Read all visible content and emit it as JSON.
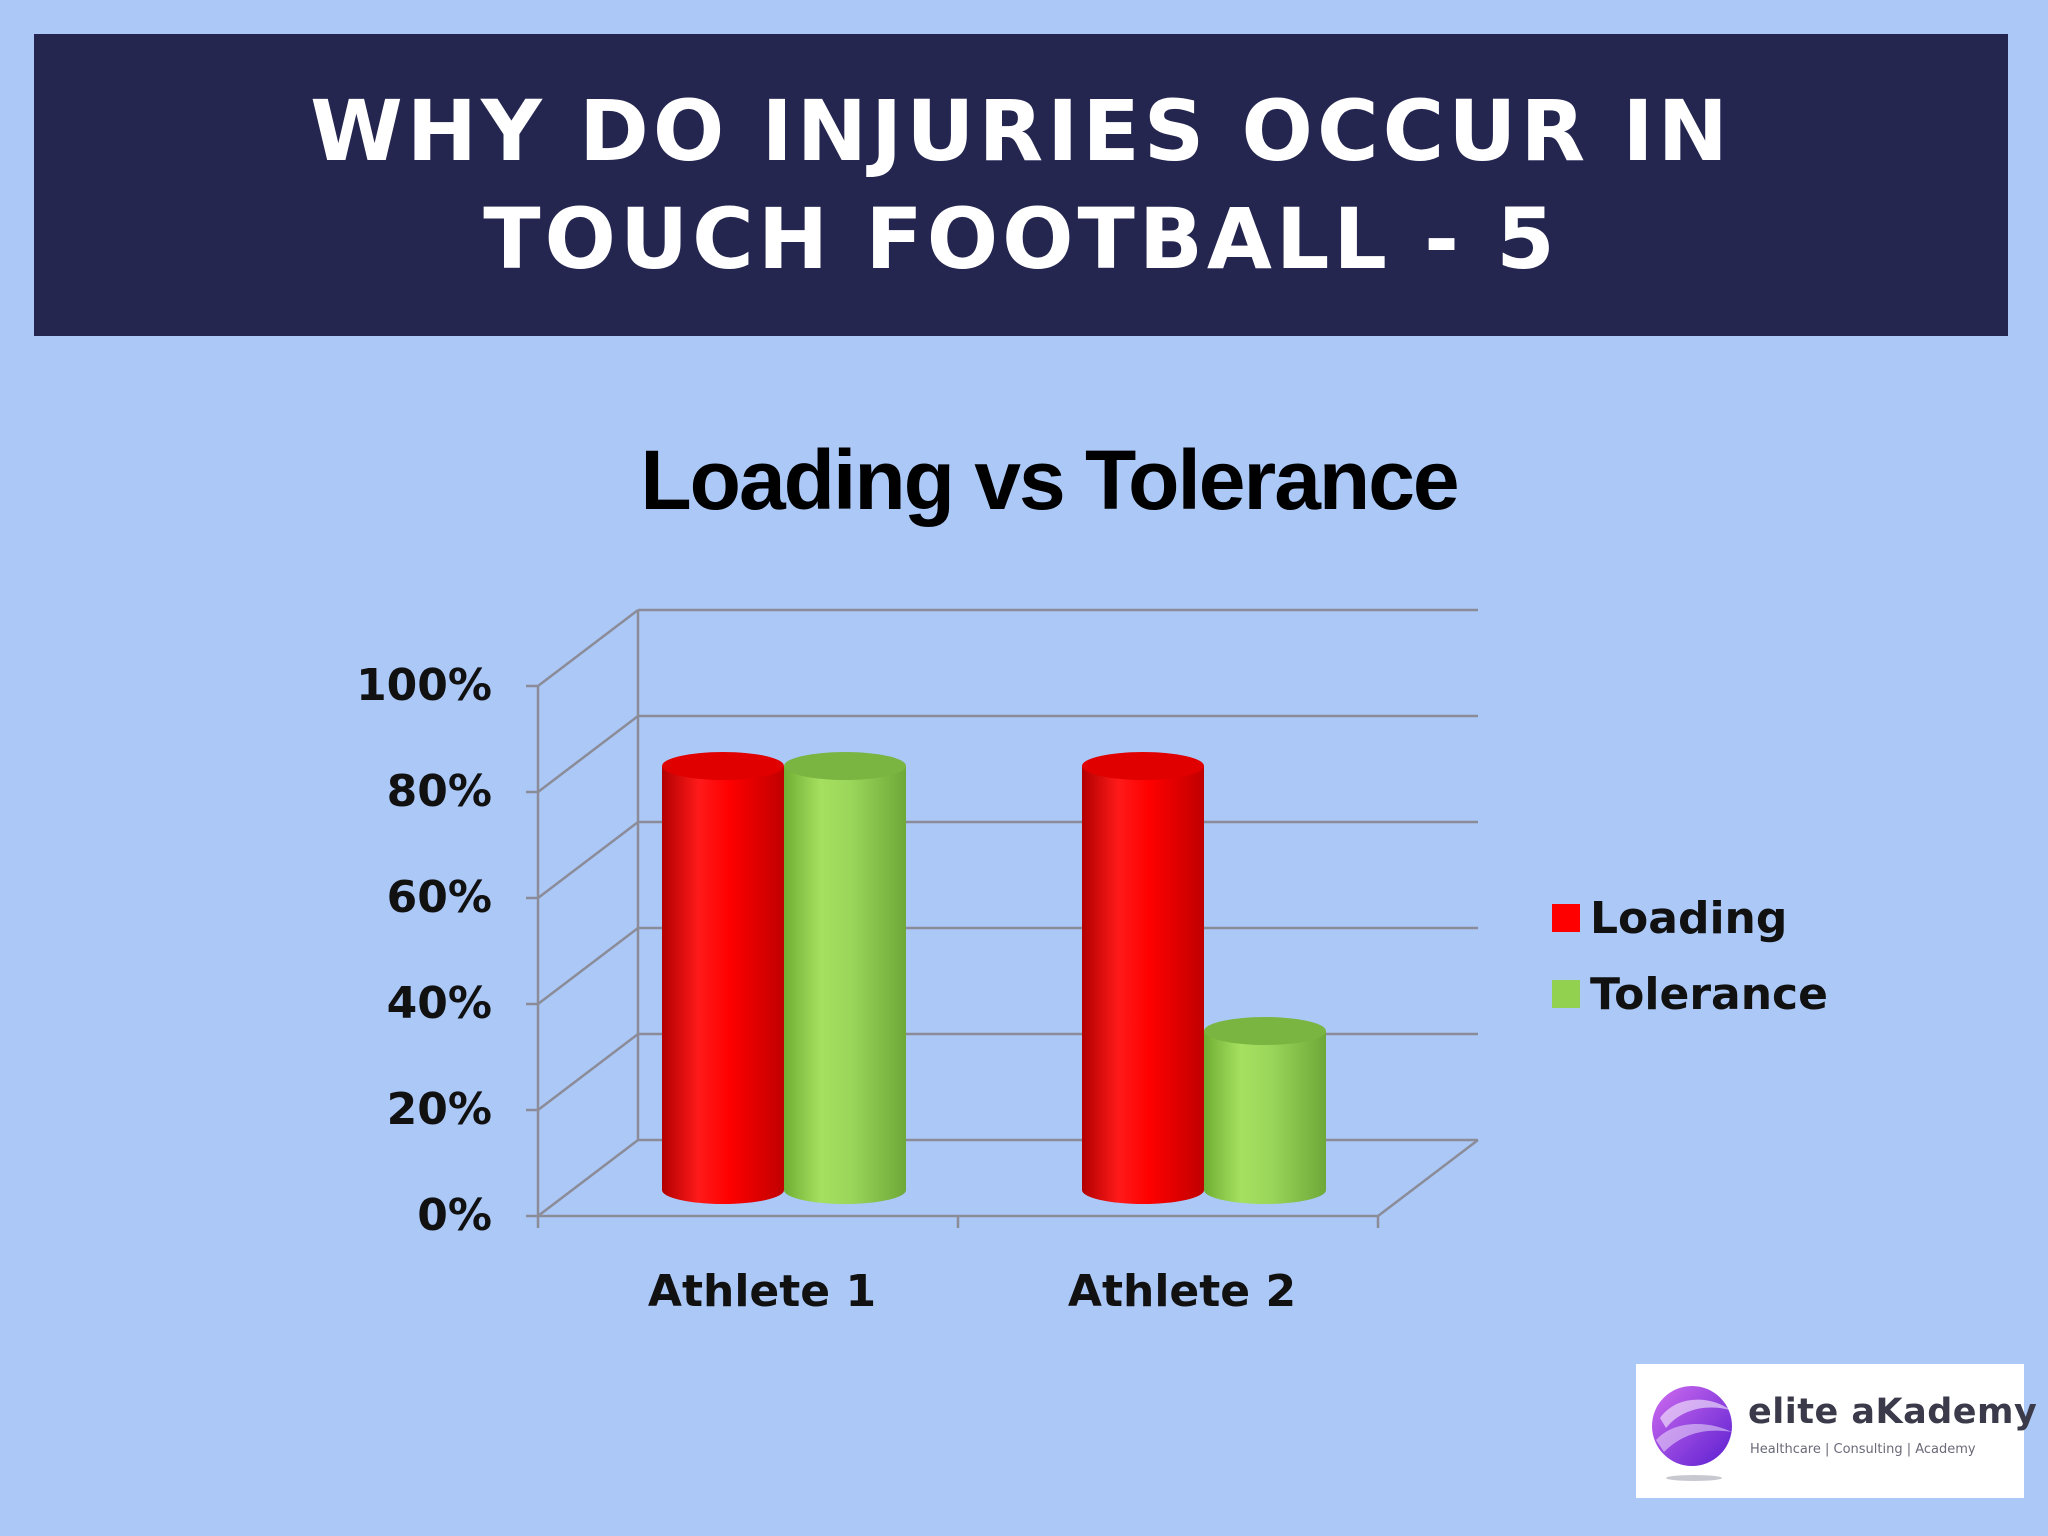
{
  "slide": {
    "title_line1": "WHY DO INJURIES OCCUR IN",
    "title_line2": "TOUCH FOOTBALL - 5",
    "colors": {
      "background": "#abc8f7",
      "banner": "#242650"
    }
  },
  "chart_data": {
    "type": "bar",
    "style": "3d-cylinder",
    "title": "Loading vs Tolerance",
    "categories": [
      "Athlete 1",
      "Athlete 2"
    ],
    "series": [
      {
        "name": "Loading",
        "color": "#ff0000",
        "values": [
          80,
          80
        ]
      },
      {
        "name": "Tolerance",
        "color": "#92d050",
        "values": [
          80,
          30
        ]
      }
    ],
    "yticks": [
      "0%",
      "20%",
      "40%",
      "60%",
      "80%",
      "100%"
    ],
    "ylim": [
      0,
      100
    ],
    "grid": true,
    "legend_position": "right"
  },
  "logo": {
    "name": "elite aKademy",
    "tagline": "Healthcare | Consulting | Academy"
  }
}
